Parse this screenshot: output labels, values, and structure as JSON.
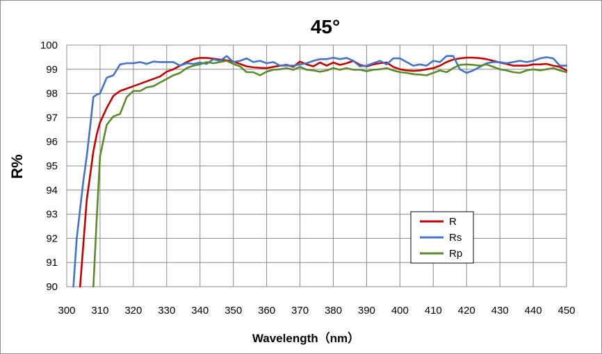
{
  "chart_data": {
    "type": "line",
    "title": "45°",
    "xlabel": "Wavelength（nm）",
    "ylabel": "R%",
    "xlim": [
      300,
      450
    ],
    "ylim": [
      90,
      100
    ],
    "xticks": [
      "300",
      "310",
      "320",
      "330",
      "340",
      "350",
      "360",
      "370",
      "380",
      "390",
      "400",
      "410",
      "420",
      "430",
      "440",
      "450"
    ],
    "yticks": [
      "90",
      "91",
      "92",
      "93",
      "94",
      "95",
      "96",
      "97",
      "98",
      "99",
      "100"
    ],
    "grid": true,
    "legend_position": "lower-right",
    "series": [
      {
        "name": "R",
        "color": "#c00000",
        "x": [
          304,
          305,
          306,
          307,
          308,
          309,
          310,
          312,
          314,
          316,
          318,
          320,
          322,
          324,
          326,
          328,
          330,
          332,
          334,
          336,
          338,
          340,
          342,
          344,
          346,
          348,
          350,
          352,
          354,
          356,
          358,
          360,
          362,
          364,
          366,
          368,
          370,
          372,
          374,
          376,
          378,
          380,
          382,
          384,
          386,
          388,
          390,
          392,
          394,
          396,
          398,
          400,
          402,
          404,
          406,
          408,
          410,
          412,
          414,
          416,
          418,
          420,
          422,
          424,
          426,
          428,
          430,
          432,
          434,
          436,
          438,
          440,
          442,
          444,
          446,
          448,
          450
        ],
        "values": [
          90.0,
          91.8,
          93.6,
          94.6,
          95.6,
          96.3,
          96.8,
          97.4,
          97.9,
          98.1,
          98.2,
          98.3,
          98.4,
          98.5,
          98.6,
          98.7,
          98.9,
          99.0,
          99.15,
          99.3,
          99.42,
          99.47,
          99.47,
          99.44,
          99.4,
          99.37,
          99.32,
          99.22,
          99.12,
          99.08,
          99.06,
          99.05,
          99.1,
          99.15,
          99.18,
          99.1,
          99.32,
          99.2,
          99.12,
          99.28,
          99.15,
          99.28,
          99.18,
          99.25,
          99.35,
          99.18,
          99.12,
          99.2,
          99.25,
          99.28,
          99.1,
          99.0,
          98.95,
          98.93,
          98.95,
          99.0,
          99.05,
          99.15,
          99.3,
          99.4,
          99.45,
          99.48,
          99.48,
          99.46,
          99.42,
          99.35,
          99.28,
          99.22,
          99.15,
          99.15,
          99.15,
          99.2,
          99.2,
          99.22,
          99.15,
          99.1,
          98.95
        ]
      },
      {
        "name": "Rs",
        "color": "#4472c4",
        "x": [
          302,
          303,
          304,
          305,
          306,
          307,
          308,
          309,
          310,
          312,
          314,
          316,
          318,
          320,
          322,
          324,
          326,
          328,
          330,
          332,
          334,
          336,
          338,
          340,
          342,
          344,
          346,
          348,
          350,
          352,
          354,
          356,
          358,
          360,
          362,
          364,
          366,
          368,
          370,
          372,
          374,
          376,
          378,
          380,
          382,
          384,
          386,
          388,
          390,
          392,
          394,
          396,
          398,
          400,
          402,
          404,
          406,
          408,
          410,
          412,
          414,
          416,
          418,
          420,
          422,
          424,
          426,
          428,
          430,
          432,
          434,
          436,
          438,
          440,
          442,
          444,
          446,
          448,
          450
        ],
        "values": [
          90.0,
          92.0,
          93.2,
          94.4,
          95.4,
          96.6,
          97.85,
          97.95,
          98.0,
          98.65,
          98.75,
          99.2,
          99.25,
          99.25,
          99.3,
          99.22,
          99.32,
          99.3,
          99.3,
          99.3,
          99.15,
          99.25,
          99.22,
          99.28,
          99.22,
          99.42,
          99.35,
          99.55,
          99.3,
          99.35,
          99.45,
          99.3,
          99.35,
          99.25,
          99.3,
          99.15,
          99.15,
          99.15,
          99.2,
          99.25,
          99.35,
          99.42,
          99.42,
          99.48,
          99.42,
          99.47,
          99.35,
          99.12,
          99.15,
          99.25,
          99.35,
          99.2,
          99.45,
          99.45,
          99.3,
          99.15,
          99.2,
          99.15,
          99.35,
          99.3,
          99.55,
          99.55,
          99.0,
          98.85,
          98.95,
          99.1,
          99.25,
          99.3,
          99.3,
          99.25,
          99.3,
          99.35,
          99.3,
          99.35,
          99.45,
          99.5,
          99.45,
          99.15,
          99.15
        ]
      },
      {
        "name": "Rp",
        "color": "#5a8a2a",
        "x": [
          308,
          309,
          310,
          312,
          314,
          316,
          318,
          320,
          322,
          324,
          326,
          328,
          330,
          332,
          334,
          336,
          338,
          340,
          342,
          344,
          346,
          348,
          350,
          352,
          354,
          356,
          358,
          360,
          362,
          364,
          366,
          368,
          370,
          372,
          374,
          376,
          378,
          380,
          382,
          384,
          386,
          388,
          390,
          392,
          394,
          396,
          398,
          400,
          402,
          404,
          406,
          408,
          410,
          412,
          414,
          416,
          418,
          420,
          422,
          424,
          426,
          428,
          430,
          432,
          434,
          436,
          438,
          440,
          442,
          444,
          446,
          448,
          450
        ],
        "values": [
          90.0,
          92.8,
          95.4,
          96.7,
          97.05,
          97.15,
          97.85,
          98.1,
          98.1,
          98.25,
          98.3,
          98.45,
          98.6,
          98.75,
          98.85,
          99.05,
          99.15,
          99.2,
          99.3,
          99.25,
          99.3,
          99.35,
          99.22,
          99.12,
          98.88,
          98.88,
          98.75,
          98.9,
          98.98,
          99.0,
          99.05,
          98.98,
          99.1,
          98.98,
          98.95,
          98.9,
          98.95,
          99.05,
          98.98,
          99.05,
          98.98,
          98.98,
          98.92,
          98.98,
          99.0,
          99.05,
          98.95,
          98.88,
          98.85,
          98.8,
          98.78,
          98.75,
          98.85,
          98.95,
          98.88,
          99.05,
          99.18,
          99.2,
          99.18,
          99.15,
          99.2,
          99.1,
          99.0,
          98.95,
          98.88,
          98.85,
          98.95,
          99.0,
          98.95,
          99.0,
          99.05,
          98.95,
          98.88
        ]
      }
    ]
  }
}
